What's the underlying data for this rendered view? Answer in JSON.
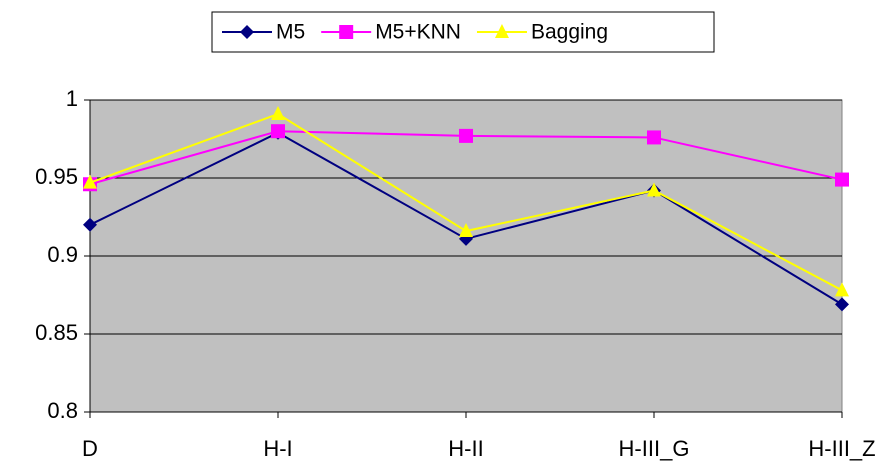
{
  "chart_data": {
    "type": "line",
    "categories": [
      "D",
      "H-I",
      "H-II",
      "H-III_G",
      "H-III_Z"
    ],
    "series": [
      {
        "name": "M5",
        "color": "#000080",
        "marker": "diamond",
        "values": [
          0.92,
          0.979,
          0.911,
          0.942,
          0.869
        ]
      },
      {
        "name": "M5+KNN",
        "color": "#ff00ff",
        "marker": "square",
        "values": [
          0.946,
          0.98,
          0.977,
          0.976,
          0.949
        ]
      },
      {
        "name": "Bagging",
        "color": "#ffff00",
        "marker": "triangle",
        "values": [
          0.947,
          0.991,
          0.916,
          0.942,
          0.878
        ]
      }
    ],
    "ylim": [
      0.8,
      1
    ],
    "yticks": [
      0.8,
      0.85,
      0.9,
      0.95,
      1
    ],
    "grid": true,
    "legend": "top"
  }
}
